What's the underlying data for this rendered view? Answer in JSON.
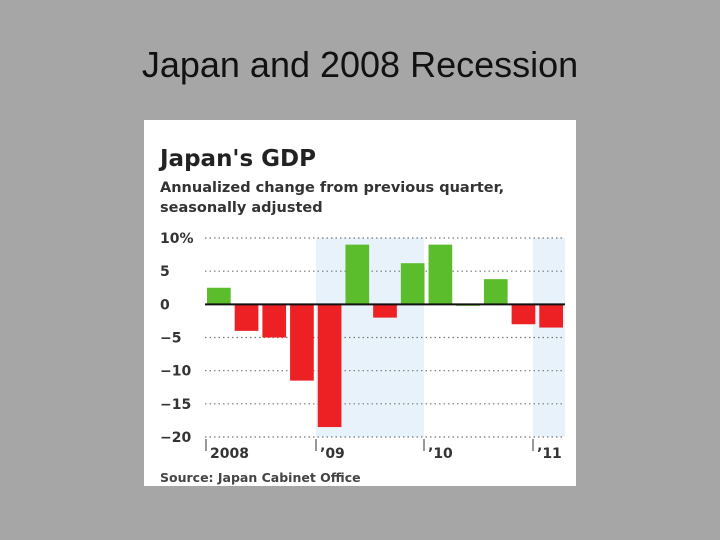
{
  "slide": {
    "title": "Japan and 2008 Recession"
  },
  "chart_data": {
    "type": "bar",
    "title": "Japan's GDP",
    "subtitle": "Annualized change from previous quarter, seasonally adjusted",
    "source": "Source: Japan Cabinet Office",
    "ylim": [
      -20,
      10
    ],
    "yticks": [
      10,
      5,
      0,
      -5,
      -10,
      -15,
      -20
    ],
    "ytick_labels": [
      "10%",
      "5",
      "0",
      "−5",
      "−10",
      "−15",
      "−20"
    ],
    "grid": true,
    "year_labels": [
      "2008",
      "’09",
      "’10",
      "’11"
    ],
    "values": [
      2.5,
      -4,
      -5,
      -11.5,
      -18.5,
      9,
      -2,
      6.2,
      9,
      0,
      3.8,
      -3,
      -3.5
    ],
    "colors": {
      "positive": "#5bbd2b",
      "negative": "#ed2024",
      "band": "#e8f2fb"
    }
  }
}
